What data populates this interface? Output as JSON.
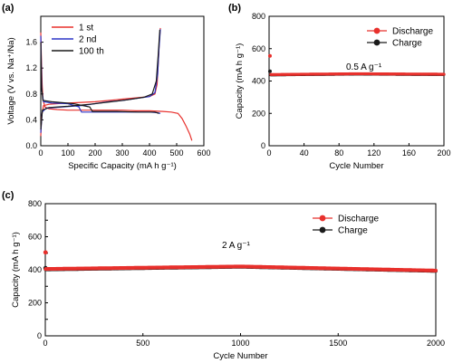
{
  "chart_data": [
    {
      "panel": "(a)",
      "type": "line",
      "xlabel": "Specific Capacity (mA h g⁻¹)",
      "ylabel": "Voltage (V vs. Na⁺/Na)",
      "xlim": [
        0,
        600
      ],
      "ylim": [
        0.0,
        2.0
      ],
      "xticks": [
        0,
        100,
        200,
        300,
        400,
        500,
        600
      ],
      "yticks": [
        0.0,
        0.4,
        0.8,
        1.2,
        1.6
      ],
      "ytick_labels": [
        "0.0",
        "0.4",
        "0.8",
        "1.2",
        "1.6"
      ],
      "legend_position": "top-left",
      "series": [
        {
          "name": "1 st",
          "color": "#e8302c",
          "discharge": {
            "x": [
              0,
              2,
              5,
              8,
              15,
              30,
              60,
              100,
              150,
              200,
              250,
              300,
              350,
              400,
              450,
              480,
              505,
              520,
              535,
              548,
              556
            ],
            "y": [
              1.75,
              1.4,
              0.95,
              0.72,
              0.6,
              0.57,
              0.56,
              0.55,
              0.55,
              0.55,
              0.55,
              0.55,
              0.54,
              0.54,
              0.53,
              0.52,
              0.5,
              0.42,
              0.3,
              0.18,
              0.08
            ]
          },
          "charge": {
            "x": [
              0,
              3,
              10,
              30,
              60,
              100,
              150,
              200,
              250,
              300,
              350,
              400,
              420,
              428,
              432,
              436,
              440
            ],
            "y": [
              0.15,
              0.45,
              0.62,
              0.64,
              0.65,
              0.66,
              0.67,
              0.68,
              0.7,
              0.72,
              0.74,
              0.76,
              0.8,
              0.95,
              1.25,
              1.6,
              1.82
            ]
          }
        },
        {
          "name": "2 nd",
          "color": "#2c35c7",
          "discharge": {
            "x": [
              0,
              4,
              10,
              40,
              100,
              140,
              150,
              200,
              280,
              350,
              400,
              430,
              440
            ],
            "y": [
              1.7,
              0.85,
              0.68,
              0.66,
              0.65,
              0.6,
              0.52,
              0.52,
              0.52,
              0.52,
              0.52,
              0.51,
              0.5
            ]
          },
          "charge": {
            "x": [
              0,
              5,
              20,
              80,
              150,
              200,
              250,
              300,
              350,
              400,
              420,
              430,
              435,
              440
            ],
            "y": [
              0.2,
              0.52,
              0.58,
              0.6,
              0.62,
              0.65,
              0.68,
              0.7,
              0.73,
              0.76,
              0.82,
              1.1,
              1.5,
              1.8
            ]
          }
        },
        {
          "name": "100 th",
          "color": "#1a1a1a",
          "discharge": {
            "x": [
              0,
              3,
              8,
              40,
              120,
              180,
              190,
              280,
              360,
              420,
              435
            ],
            "y": [
              1.6,
              0.9,
              0.7,
              0.68,
              0.65,
              0.6,
              0.53,
              0.53,
              0.52,
              0.52,
              0.5
            ]
          },
          "charge": {
            "x": [
              0,
              6,
              30,
              100,
              180,
              260,
              320,
              380,
              410,
              425,
              432,
              438
            ],
            "y": [
              0.25,
              0.55,
              0.59,
              0.61,
              0.64,
              0.68,
              0.71,
              0.75,
              0.8,
              1.0,
              1.4,
              1.79
            ]
          }
        }
      ]
    },
    {
      "panel": "(b)",
      "type": "scatter",
      "xlabel": "Cycle Number",
      "ylabel": "Capacity (mA h g⁻¹)",
      "xlim": [
        0,
        200
      ],
      "ylim": [
        0,
        800
      ],
      "xticks": [
        0,
        40,
        80,
        120,
        160,
        200
      ],
      "yticks": [
        0,
        200,
        400,
        600,
        800
      ],
      "annotation": "0.5 A g⁻¹",
      "legend_position": "top-right",
      "series": [
        {
          "name": "Discharge",
          "color": "#e8302c",
          "first_point": [
            1,
            555
          ],
          "x_range": [
            2,
            200
          ],
          "y_start": 440,
          "y_mid": 445,
          "y_end": 442
        },
        {
          "name": "Charge",
          "color": "#1a1a1a",
          "first_point": [
            1,
            460
          ],
          "x_range": [
            2,
            200
          ],
          "y_start": 438,
          "y_mid": 443,
          "y_end": 440
        }
      ]
    },
    {
      "panel": "(c)",
      "type": "scatter",
      "xlabel": "Cycle Number",
      "ylabel": "Capacity (mA h g⁻¹)",
      "xlim": [
        0,
        2000
      ],
      "ylim": [
        0,
        800
      ],
      "xticks": [
        0,
        500,
        1000,
        1500,
        2000
      ],
      "yticks": [
        0,
        100,
        200,
        300,
        400,
        500,
        600,
        700,
        800
      ],
      "ytick_labels": [
        "0",
        "",
        "200",
        "",
        "400",
        "",
        "600",
        "",
        "800"
      ],
      "annotation": "2 A g⁻¹",
      "legend_position": "top-right",
      "series": [
        {
          "name": "Discharge",
          "color": "#e8302c",
          "first_point": [
            1,
            505
          ],
          "x_range": [
            2,
            2000
          ],
          "y_start": 405,
          "y_mid": 420,
          "y_end": 395
        },
        {
          "name": "Charge",
          "color": "#1a1a1a",
          "first_point": [
            1,
            410
          ],
          "x_range": [
            2,
            2000
          ],
          "y_start": 402,
          "y_mid": 418,
          "y_end": 393
        }
      ]
    }
  ]
}
